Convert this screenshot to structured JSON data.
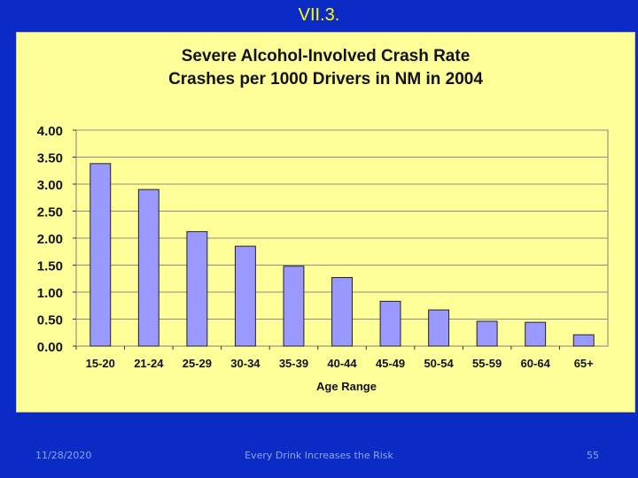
{
  "slide": {
    "title": "VII.3.",
    "footer": {
      "date": "11/28/2020",
      "center": "Every Drink Increases the Risk",
      "page": "55"
    }
  },
  "colors": {
    "background": "#0a2bc4",
    "panel": "#ffff99",
    "bar": "#9999ff",
    "title": "#ffff00"
  },
  "chart_data": {
    "type": "bar",
    "title_line1": "Severe Alcohol-Involved  Crash Rate",
    "title_line2": "Crashes per 1000 Drivers in NM in 2004",
    "xlabel": "Age Range",
    "ylabel": "",
    "ylim": [
      0,
      4
    ],
    "yticks": [
      "0.00",
      "0.50",
      "1.00",
      "1.50",
      "2.00",
      "2.50",
      "3.00",
      "3.50",
      "4.00"
    ],
    "categories": [
      "15-20",
      "21-24",
      "25-29",
      "30-34",
      "35-39",
      "40-44",
      "45-49",
      "50-54",
      "55-59",
      "60-64",
      "65+"
    ],
    "values": [
      3.38,
      2.9,
      2.12,
      1.85,
      1.48,
      1.27,
      0.83,
      0.67,
      0.46,
      0.44,
      0.21
    ],
    "grid": true
  }
}
